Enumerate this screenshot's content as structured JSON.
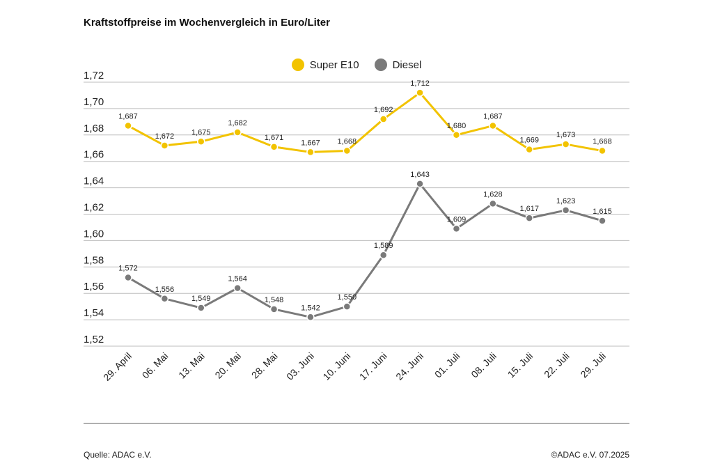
{
  "title": "Kraftstoffpreise im Wochenvergleich in Euro/Liter",
  "footer": {
    "source": "Quelle: ADAC e.V.",
    "copyright": "©ADAC e.V. 07.2025"
  },
  "colors": {
    "super": "#F2C300",
    "diesel": "#7A7A7A",
    "grid": "#BDBDBD"
  },
  "chart_data": {
    "type": "line",
    "title": "Kraftstoffpreise im Wochenvergleich in Euro/Liter",
    "xlabel": "",
    "ylabel": "",
    "ylim": [
      1.52,
      1.72
    ],
    "yticks": [
      "1,52",
      "1,54",
      "1,56",
      "1,58",
      "1,60",
      "1,62",
      "1,64",
      "1,66",
      "1,68",
      "1,70",
      "1,72"
    ],
    "grid": true,
    "legend_position": "top-center",
    "categories": [
      "29. April",
      "06. Mai",
      "13. Mai",
      "20. Mai",
      "28. Mai",
      "03. Juni",
      "10. Juni",
      "17. Juni",
      "24. Juni",
      "01. Juli",
      "08. Juli",
      "15. Juli",
      "22. Juli",
      "29. Juli"
    ],
    "series": [
      {
        "name": "Super E10",
        "color": "#F2C300",
        "values": [
          1.687,
          1.672,
          1.675,
          1.682,
          1.671,
          1.667,
          1.668,
          1.692,
          1.712,
          1.68,
          1.687,
          1.669,
          1.673,
          1.668
        ],
        "labels": [
          "1,687",
          "1,672",
          "1,675",
          "1,682",
          "1,671",
          "1,667",
          "1,668",
          "1,692",
          "1,712",
          "1,680",
          "1,687",
          "1,669",
          "1,673",
          "1,668"
        ]
      },
      {
        "name": "Diesel",
        "color": "#7A7A7A",
        "values": [
          1.572,
          1.556,
          1.549,
          1.564,
          1.548,
          1.542,
          1.55,
          1.589,
          1.643,
          1.609,
          1.628,
          1.617,
          1.623,
          1.615
        ],
        "labels": [
          "1,572",
          "1,556",
          "1,549",
          "1,564",
          "1,548",
          "1,542",
          "1,550",
          "1,589",
          "1,643",
          "1,609",
          "1,628",
          "1,617",
          "1,623",
          "1,615"
        ]
      }
    ]
  }
}
